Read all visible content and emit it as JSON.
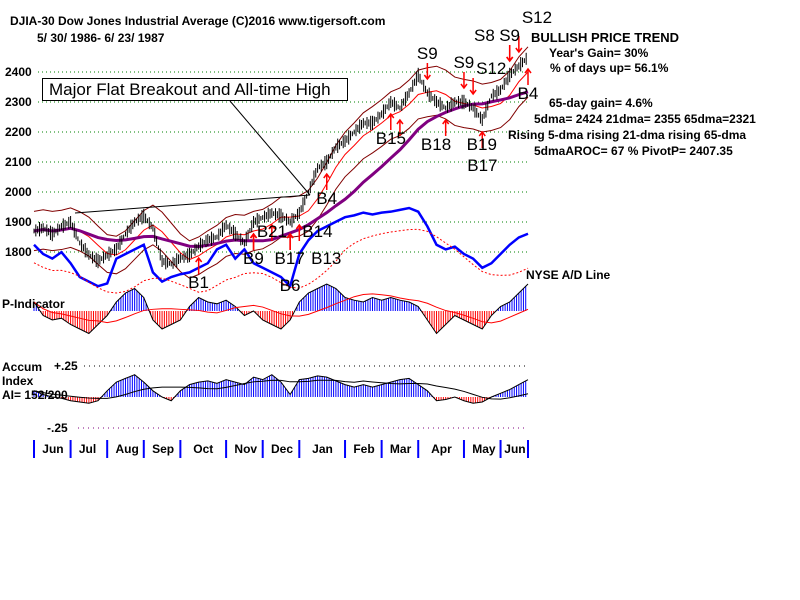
{
  "header": {
    "title": "DJIA-30  Dow Jones Industrial Average   (C)2016 www.tigersoft.com",
    "range": "5/ 30/ 1986- 6/ 23/ 1987"
  },
  "callout": "Major Flat Breakout and All-time High",
  "stats": {
    "trend": "BULLISH PRICE TREND",
    "year_gain": "Year's Gain= 30%",
    "days_up": "% of days up= 56.1%",
    "gain65": "65-day gain= 4.6%",
    "dmas": "5dma= 2424 21dma= 2355 65dma=2321",
    "rising": "Rising 5-dma  rising 21-dma  rising 65-dma",
    "aroc": "5dmaAROC= 67 %  PivotP= 2407.35"
  },
  "labels": {
    "ad": "NYSE A/D Line",
    "pind": "P-Indicator",
    "accum1": "Accum",
    "accum2": "Index",
    "ai": "AI= 152/200",
    "plus": "+.25",
    "minus": "-.25"
  },
  "colors": {
    "price": "#000000",
    "ad": "#0000ff",
    "ma65": "#800080",
    "band": "#800000",
    "ma21": "#ff0000",
    "pos": "#0000ff",
    "neg": "#ff0000",
    "grid": "#008000"
  },
  "chart_data": {
    "type": "line",
    "title": "DJIA-30 Dow Jones Industrial Average",
    "yticks": [
      2400,
      2300,
      2200,
      2100,
      2000,
      1900,
      1800
    ],
    "ylim": [
      1700,
      2480
    ],
    "months": [
      "Jun",
      "Jul",
      "Aug",
      "Sep",
      "Oct",
      "Nov",
      "Dec",
      "Jan",
      "Feb",
      "Mar",
      "Apr",
      "May",
      "Jun"
    ],
    "month_start_index": [
      0,
      4,
      8,
      12,
      16,
      21,
      25,
      29,
      34,
      38,
      42,
      47,
      51
    ],
    "price": [
      1870,
      1880,
      1860,
      1885,
      1900,
      1830,
      1790,
      1770,
      1790,
      1810,
      1860,
      1900,
      1920,
      1880,
      1770,
      1760,
      1780,
      1790,
      1820,
      1840,
      1850,
      1890,
      1860,
      1830,
      1900,
      1915,
      1930,
      1920,
      1900,
      1930,
      2000,
      2080,
      2100,
      2150,
      2170,
      2200,
      2230,
      2230,
      2260,
      2300,
      2280,
      2330,
      2390,
      2330,
      2300,
      2280,
      2300,
      2300,
      2280,
      2240,
      2320,
      2340,
      2390,
      2420,
      2450
    ],
    "ad_line": [
      60,
      50,
      45,
      52,
      40,
      25,
      20,
      15,
      18,
      45,
      50,
      55,
      60,
      30,
      20,
      25,
      28,
      30,
      35,
      40,
      55,
      60,
      45,
      55,
      40,
      35,
      30,
      25,
      15,
      50,
      65,
      75,
      80,
      85,
      90,
      92,
      95,
      93,
      95,
      96,
      98,
      100,
      96,
      80,
      60,
      55,
      58,
      50,
      45,
      35,
      40,
      50,
      60,
      68,
      72
    ],
    "p_indicator": [
      10,
      -5,
      -10,
      -8,
      -15,
      -20,
      -25,
      -15,
      -5,
      10,
      20,
      25,
      15,
      -10,
      -20,
      -15,
      -10,
      5,
      15,
      10,
      8,
      12,
      5,
      -5,
      0,
      -10,
      -15,
      -20,
      -10,
      10,
      20,
      25,
      30,
      25,
      15,
      12,
      10,
      15,
      12,
      15,
      12,
      10,
      5,
      -10,
      -25,
      -15,
      -5,
      -10,
      -15,
      -20,
      -5,
      5,
      10,
      20,
      30
    ],
    "accum_index": [
      0.05,
      0.02,
      0,
      -0.01,
      -0.03,
      -0.04,
      -0.05,
      -0.03,
      0.05,
      0.12,
      0.15,
      0.18,
      0.12,
      0.05,
      0,
      -0.03,
      0.05,
      0.1,
      0.12,
      0.13,
      0.11,
      0.14,
      0.12,
      0.1,
      0.16,
      0.14,
      0.18,
      0.12,
      0.02,
      0.14,
      0.15,
      0.17,
      0.16,
      0.13,
      0.1,
      0.08,
      0.1,
      0.08,
      0.1,
      0.12,
      0.14,
      0.15,
      0.1,
      0.05,
      -0.03,
      -0.02,
      0,
      -0.03,
      -0.05,
      -0.04,
      0,
      0.03,
      0.06,
      0.1,
      0.14
    ],
    "signals": [
      {
        "label": "S9",
        "i": 43,
        "dir": "sell"
      },
      {
        "label": "S9",
        "i": 47,
        "dir": "sell"
      },
      {
        "label": "S12",
        "i": 48,
        "dir": "sell"
      },
      {
        "label": "S9",
        "i": 52,
        "dir": "sell"
      },
      {
        "label": "S8",
        "i": 52,
        "dir": "sell"
      },
      {
        "label": "S12",
        "i": 53,
        "dir": "sell"
      },
      {
        "label": "B1",
        "i": 18,
        "dir": "buy"
      },
      {
        "label": "B9",
        "i": 24,
        "dir": "buy"
      },
      {
        "label": "B17",
        "i": 24,
        "dir": "buy"
      },
      {
        "label": "B21",
        "i": 26,
        "dir": "buy"
      },
      {
        "label": "B13",
        "i": 28,
        "dir": "buy"
      },
      {
        "label": "B14",
        "i": 29,
        "dir": "buy"
      },
      {
        "label": "B6",
        "i": 28,
        "dir": "buy"
      },
      {
        "label": "B4",
        "i": 32,
        "dir": "buy"
      },
      {
        "label": "B15",
        "i": 39,
        "dir": "buy"
      },
      {
        "label": "B18",
        "i": 40,
        "dir": "buy"
      },
      {
        "label": "B19",
        "i": 45,
        "dir": "buy"
      },
      {
        "label": "B17",
        "i": 49,
        "dir": "buy"
      },
      {
        "label": "B4",
        "i": 54,
        "dir": "buy"
      }
    ]
  }
}
